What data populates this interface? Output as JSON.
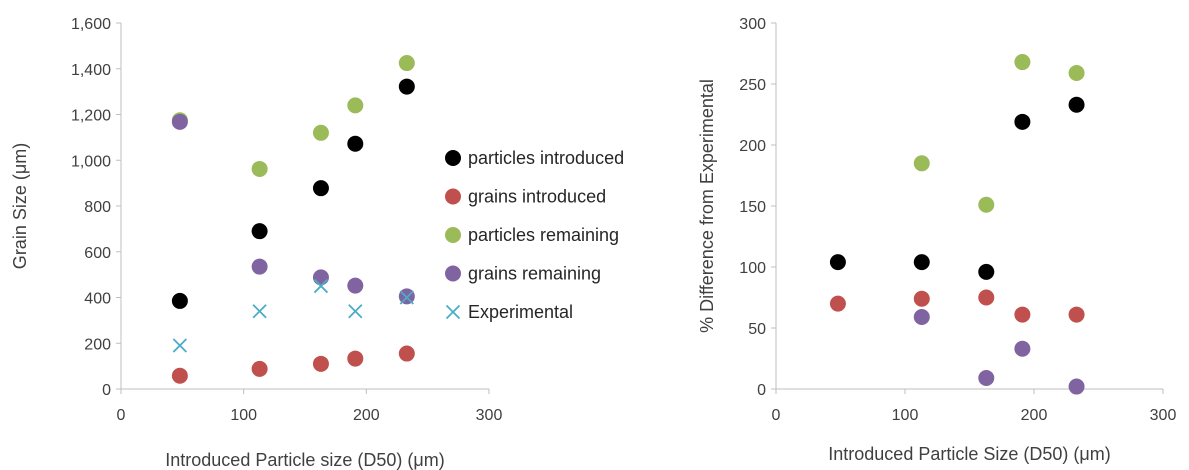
{
  "chart_data": [
    {
      "type": "scatter",
      "title": "",
      "xlabel": "Introduced Particle size (D50) (μm)",
      "ylabel": "Grain Size (μm)",
      "xlim": [
        0,
        300
      ],
      "ylim": [
        0,
        1600
      ],
      "xticks": [
        "0",
        "100",
        "200",
        "300"
      ],
      "yticks": [
        "0",
        "200",
        "400",
        "600",
        "800",
        "1,000",
        "1,200",
        "1,400",
        "1,600"
      ],
      "grid": false,
      "legend_position": "right",
      "series": [
        {
          "name": "particles introduced",
          "color": "#000000",
          "marker": "circle",
          "points": [
            [
              48,
              385
            ],
            [
              113,
              690
            ],
            [
              163,
              878
            ],
            [
              191,
              1072
            ],
            [
              233,
              1322
            ]
          ]
        },
        {
          "name": "grains introduced",
          "color": "#c0504d",
          "marker": "circle",
          "points": [
            [
              48,
              58
            ],
            [
              113,
              88
            ],
            [
              163,
              110
            ],
            [
              191,
              133
            ],
            [
              233,
              155
            ]
          ]
        },
        {
          "name": "particles remaining",
          "color": "#9bbb59",
          "marker": "circle",
          "points": [
            [
              48,
              1175
            ],
            [
              113,
              962
            ],
            [
              163,
              1120
            ],
            [
              191,
              1240
            ],
            [
              233,
              1425
            ]
          ]
        },
        {
          "name": "grains remaining",
          "color": "#8064a2",
          "marker": "circle",
          "points": [
            [
              48,
              1168
            ],
            [
              113,
              535
            ],
            [
              163,
              488
            ],
            [
              191,
              452
            ],
            [
              233,
              405
            ]
          ]
        },
        {
          "name": "Experimental",
          "color": "#4bacc6",
          "marker": "x",
          "points": [
            [
              48,
              190
            ],
            [
              113,
              340
            ],
            [
              163,
              450
            ],
            [
              191,
              340
            ],
            [
              233,
              400
            ]
          ]
        }
      ]
    },
    {
      "type": "scatter",
      "title": "",
      "xlabel": "Introduced Particle Size (D50) (μm)",
      "ylabel": "% Difference from Experimental",
      "xlim": [
        0,
        300
      ],
      "ylim": [
        0,
        300
      ],
      "xticks": [
        "0",
        "100",
        "200",
        "300"
      ],
      "yticks": [
        "0",
        "50",
        "100",
        "150",
        "200",
        "250",
        "300"
      ],
      "grid": false,
      "legend_position": "none",
      "series": [
        {
          "color": "#000000",
          "marker": "circle",
          "points": [
            [
              48,
              104
            ],
            [
              113,
              104
            ],
            [
              163,
              96
            ],
            [
              191,
              219
            ],
            [
              233,
              233
            ]
          ]
        },
        {
          "color": "#c0504d",
          "marker": "circle",
          "points": [
            [
              48,
              70
            ],
            [
              113,
              74
            ],
            [
              163,
              75
            ],
            [
              191,
              61
            ],
            [
              233,
              61
            ]
          ]
        },
        {
          "color": "#9bbb59",
          "marker": "circle",
          "points": [
            [
              113,
              185
            ],
            [
              163,
              151
            ],
            [
              191,
              268
            ],
            [
              233,
              259
            ]
          ]
        },
        {
          "color": "#8064a2",
          "marker": "circle",
          "points": [
            [
              113,
              59
            ],
            [
              163,
              9
            ],
            [
              191,
              33
            ],
            [
              233,
              2
            ]
          ]
        }
      ]
    }
  ]
}
